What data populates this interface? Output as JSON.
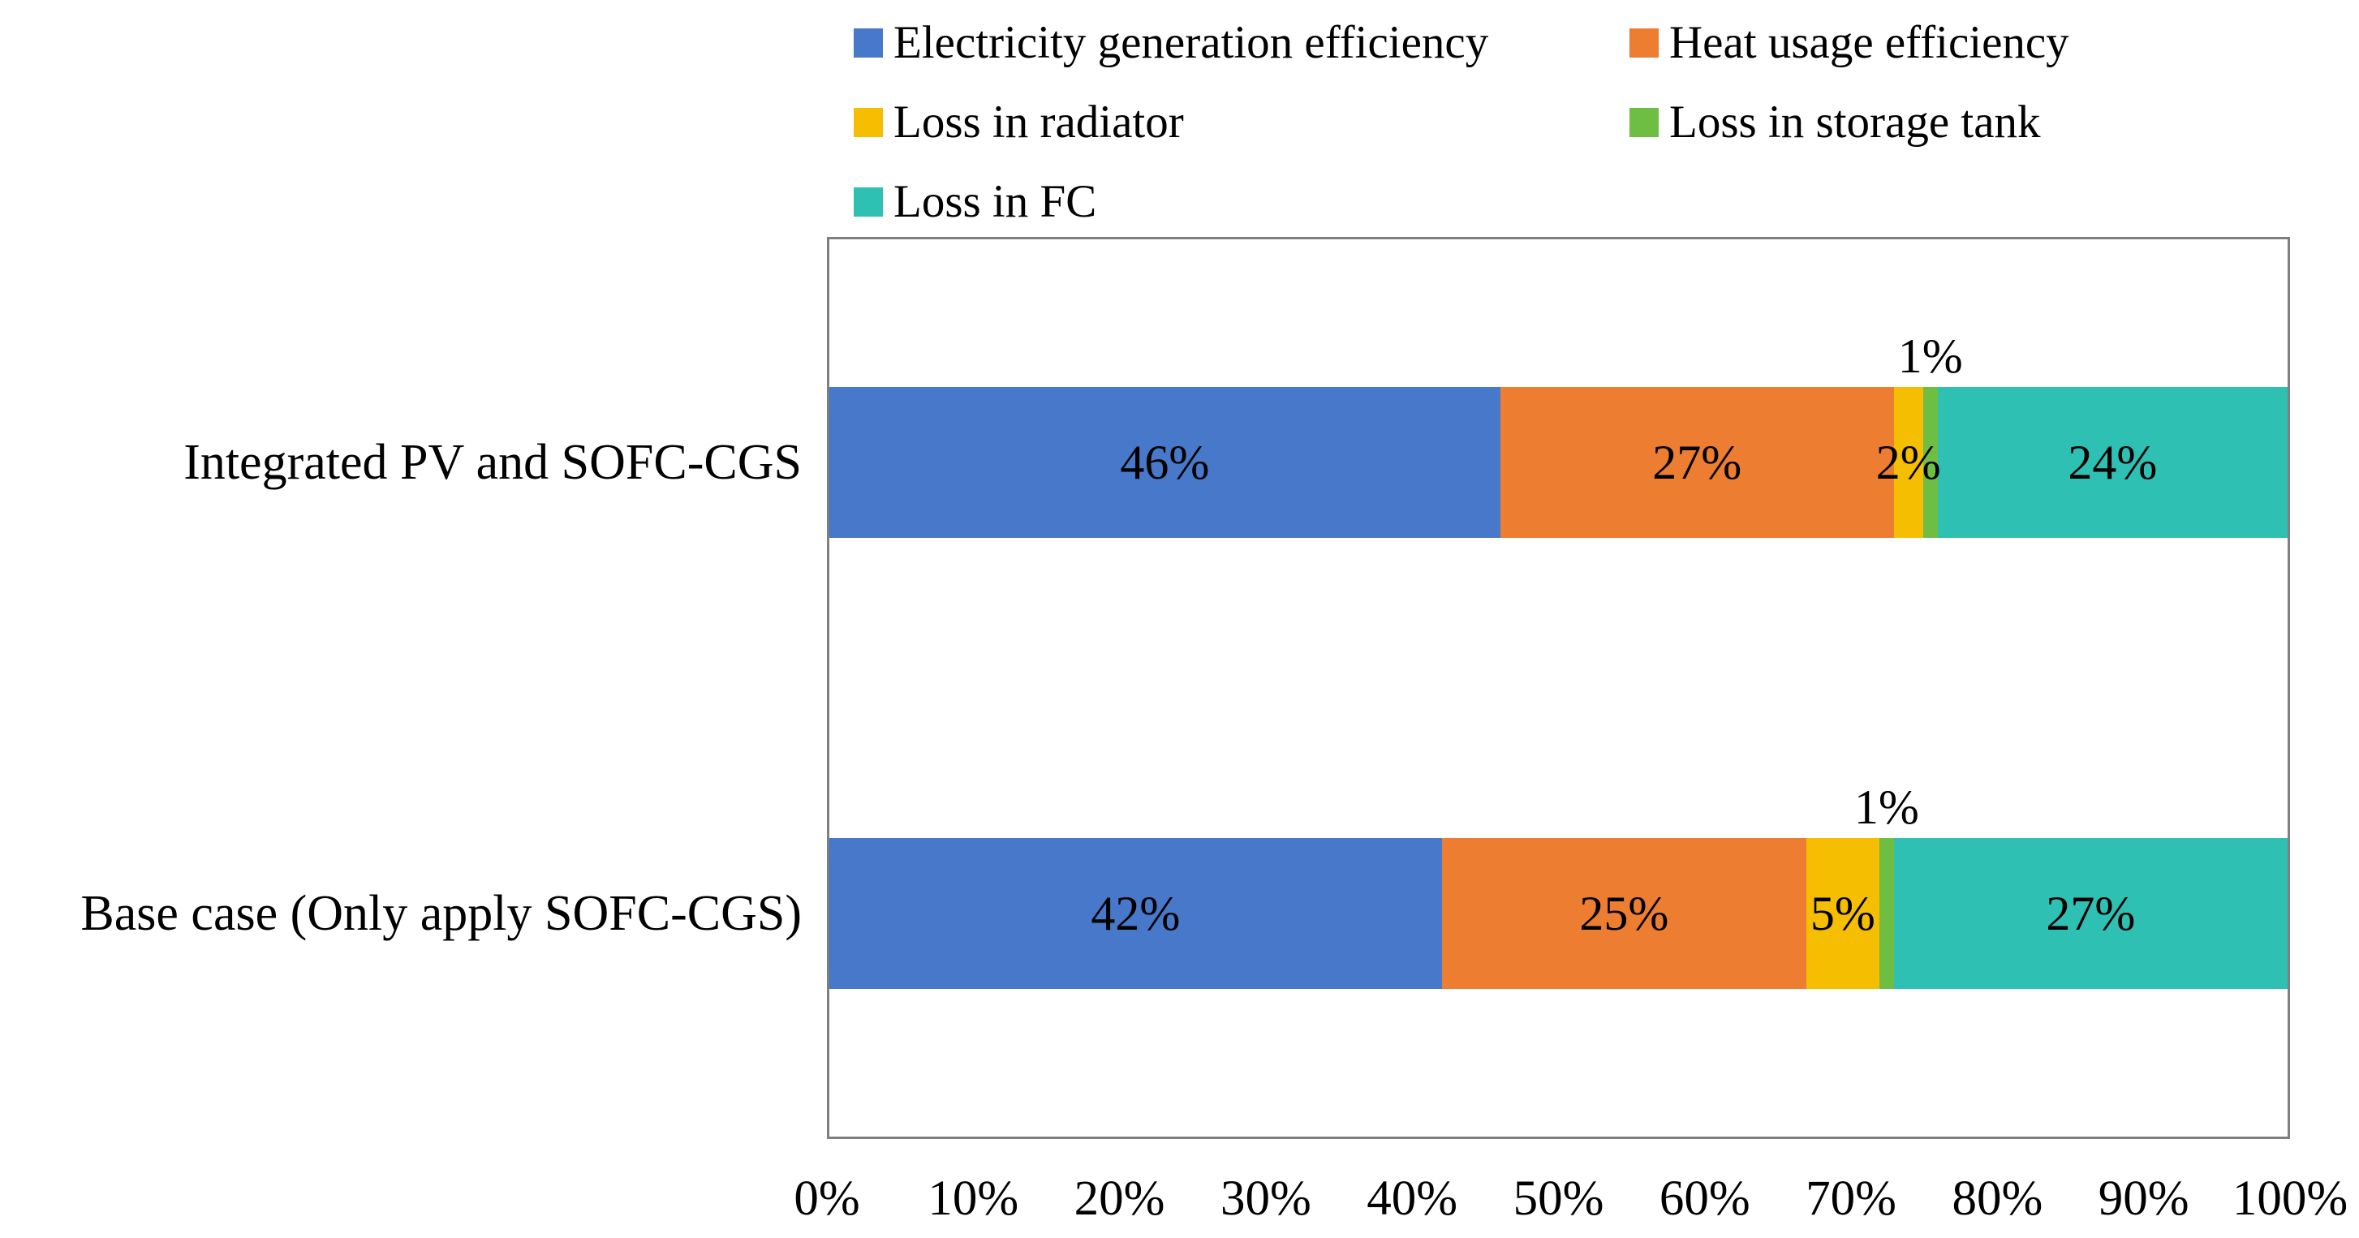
{
  "chart_data": {
    "type": "bar",
    "orientation": "horizontal-stacked",
    "title": "",
    "xlabel": "",
    "ylabel": "",
    "categories": [
      "Integrated PV and SOFC-CGS",
      "Base case (Only apply SOFC-CGS)"
    ],
    "series": [
      {
        "name": "Electricity generation efficiency",
        "color": "#4778CA",
        "values": [
          46,
          42
        ],
        "label_position": "inside"
      },
      {
        "name": "Heat usage efficiency",
        "color": "#ED7D31",
        "values": [
          27,
          25
        ],
        "label_position": "inside"
      },
      {
        "name": "Loss in radiator",
        "color": "#F6BE00",
        "values": [
          2,
          5
        ],
        "label_position": "inside"
      },
      {
        "name": "Loss in storage tank",
        "color": "#6FBE44",
        "values": [
          1,
          1
        ],
        "label_position": "above"
      },
      {
        "name": "Loss in FC",
        "color": "#2EC0B3",
        "values": [
          24,
          27
        ],
        "label_position": "inside"
      }
    ],
    "value_suffix": "%",
    "xlim": [
      0,
      100
    ],
    "x_ticks": [
      "0%",
      "10%",
      "20%",
      "30%",
      "40%",
      "50%",
      "60%",
      "70%",
      "80%",
      "90%",
      "100%"
    ],
    "legend_position": "top",
    "grid": false,
    "plot_border_color": "#7f7f7f",
    "text_color": "#000000"
  }
}
